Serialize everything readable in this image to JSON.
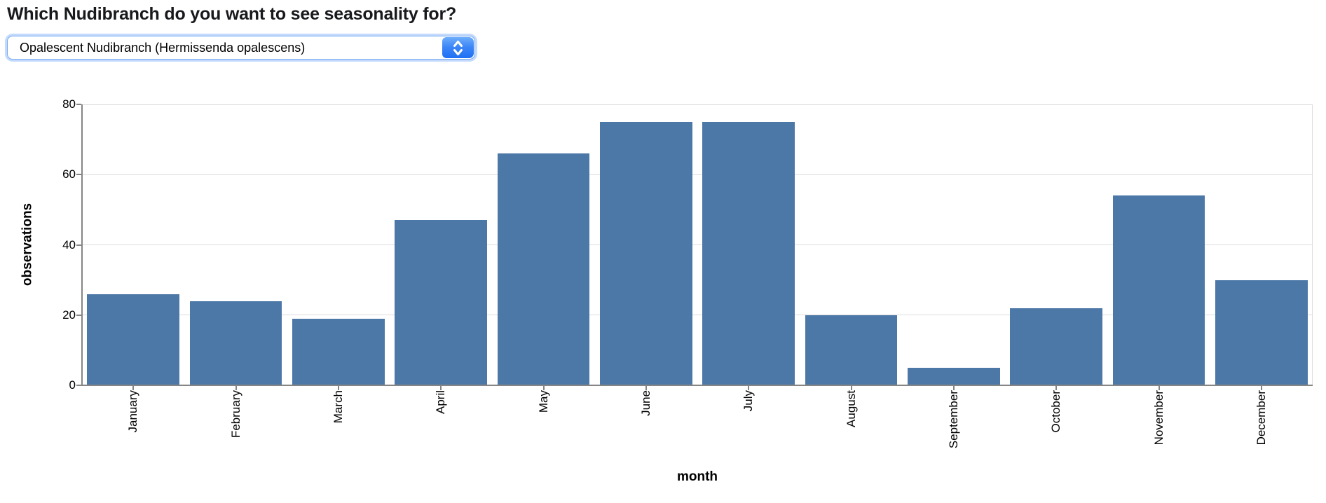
{
  "page": {
    "title": "Which Nudibranch do you want to see seasonality for?"
  },
  "selector": {
    "value": "Opalescent Nudibranch (Hermissenda opalescens)",
    "stepper_icon": "up-down-chevrons"
  },
  "chart_data": {
    "type": "bar",
    "categories": [
      "January",
      "February",
      "March",
      "April",
      "May",
      "June",
      "July",
      "August",
      "September",
      "October",
      "November",
      "December"
    ],
    "values": [
      26,
      24,
      19,
      47,
      66,
      75,
      75,
      20,
      5,
      22,
      54,
      30
    ],
    "title": "",
    "xlabel": "month",
    "ylabel": "observations",
    "ylim": [
      0,
      80
    ],
    "yticks": [
      0,
      20,
      40,
      60,
      80
    ],
    "grid": true,
    "legend": "none",
    "bar_color": "#4c78a8",
    "gridline_color": "#dddddd",
    "axis_color": "#858585",
    "label_color": "#000000"
  }
}
